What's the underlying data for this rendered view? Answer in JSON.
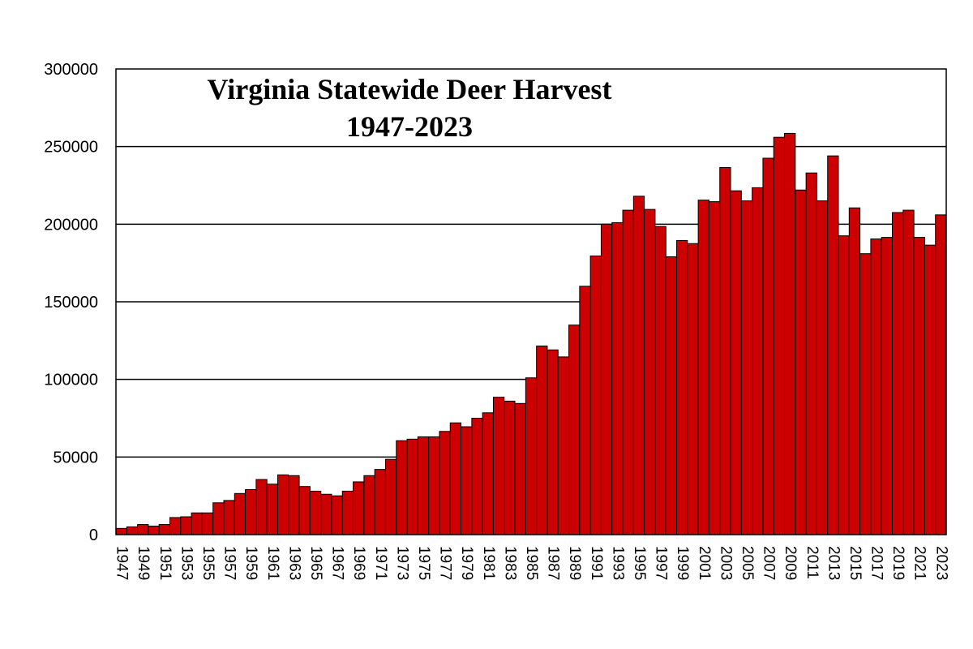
{
  "chart_data": {
    "type": "bar",
    "title": "Virginia Statewide Deer Harvest",
    "subtitle": "1947-2023",
    "xlabel": "",
    "ylabel": "",
    "ylim": [
      0,
      300000
    ],
    "yticks": [
      "0",
      "50000",
      "100000",
      "150000",
      "200000",
      "250000",
      "300000"
    ],
    "grid": true,
    "legend": "none",
    "bar_color": "#cc0000",
    "x": [
      1947,
      1948,
      1949,
      1950,
      1951,
      1952,
      1953,
      1954,
      1955,
      1956,
      1957,
      1958,
      1959,
      1960,
      1961,
      1962,
      1963,
      1964,
      1965,
      1966,
      1967,
      1968,
      1969,
      1970,
      1971,
      1972,
      1973,
      1974,
      1975,
      1976,
      1977,
      1978,
      1979,
      1980,
      1981,
      1982,
      1983,
      1984,
      1985,
      1986,
      1987,
      1988,
      1989,
      1990,
      1991,
      1992,
      1993,
      1994,
      1995,
      1996,
      1997,
      1998,
      1999,
      2000,
      2001,
      2002,
      2003,
      2004,
      2005,
      2006,
      2007,
      2008,
      2009,
      2010,
      2011,
      2012,
      2013,
      2014,
      2015,
      2016,
      2017,
      2018,
      2019,
      2020,
      2021,
      2022,
      2023
    ],
    "values": [
      4000,
      5000,
      6500,
      5500,
      6500,
      11000,
      11500,
      14000,
      14000,
      20500,
      22000,
      26500,
      29000,
      35500,
      32500,
      38500,
      38000,
      31000,
      28000,
      26000,
      25000,
      28000,
      34000,
      38000,
      42000,
      48500,
      60500,
      61500,
      63000,
      63000,
      66500,
      72000,
      69500,
      75000,
      78500,
      88500,
      86000,
      84500,
      101000,
      121500,
      119000,
      114500,
      135000,
      160000,
      179500,
      200000,
      201000,
      209000,
      218000,
      209500,
      198500,
      179000,
      189500,
      187500,
      215500,
      214500,
      236500,
      221500,
      215000,
      223500,
      242500,
      256000,
      258500,
      222000,
      233000,
      215000,
      244000,
      192500,
      210500,
      181000,
      190500,
      191500,
      207500,
      209000,
      191500,
      186500,
      206000
    ],
    "xtick_labels": [
      "1947",
      "1949",
      "1951",
      "1953",
      "1955",
      "1957",
      "1959",
      "1961",
      "1963",
      "1965",
      "1967",
      "1969",
      "1971",
      "1973",
      "1975",
      "1977",
      "1979",
      "1981",
      "1983",
      "1985",
      "1987",
      "1989",
      "1991",
      "1993",
      "1995",
      "1997",
      "1999",
      "2001",
      "2003",
      "2005",
      "2007",
      "2009",
      "2011",
      "2013",
      "2015",
      "2017",
      "2019",
      "2021",
      "2023"
    ]
  }
}
